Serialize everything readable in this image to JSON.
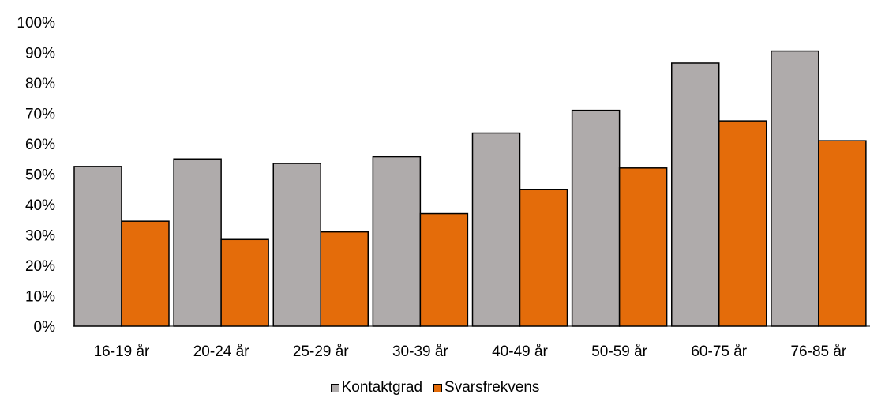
{
  "chart_data": {
    "type": "bar",
    "categories": [
      "16-19 år",
      "20-24 år",
      "25-29 år",
      "30-39 år",
      "40-49 år",
      "50-59 år",
      "60-75 år",
      "76-85 år"
    ],
    "series": [
      {
        "name": "Kontaktgrad",
        "color": "#AFABAB",
        "values": [
          52.5,
          55,
          53.5,
          55.7,
          63.5,
          71,
          86.5,
          90.5
        ]
      },
      {
        "name": "Svarsfrekvens",
        "color": "#E46C0A",
        "values": [
          34.5,
          28.5,
          31,
          37,
          45,
          52,
          67.5,
          61
        ]
      }
    ],
    "y_ticks": [
      "0%",
      "10%",
      "20%",
      "30%",
      "40%",
      "50%",
      "60%",
      "70%",
      "80%",
      "90%",
      "100%"
    ],
    "ylim": [
      0,
      100
    ],
    "grid": false,
    "legend_position": "bottom"
  }
}
